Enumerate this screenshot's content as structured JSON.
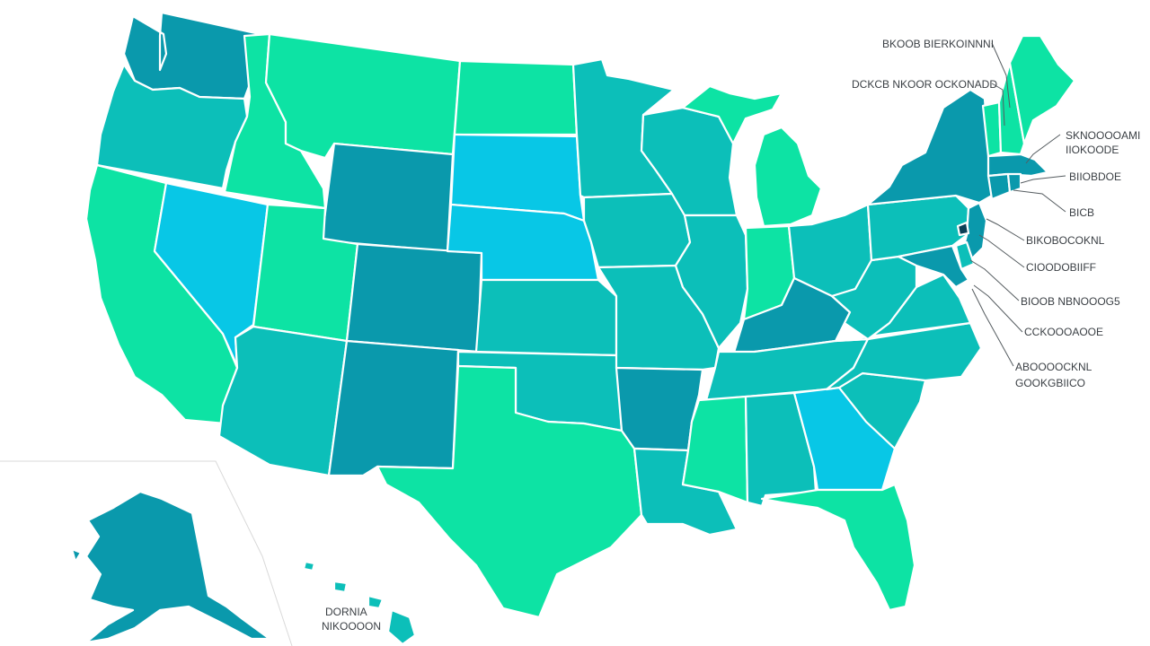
{
  "palette": {
    "mint": "#0de3a4",
    "teal": "#0cbfb9",
    "steel": "#0a99ac",
    "sky": "#08c7e6",
    "navy": "#0b3f55",
    "border": "#ffffff",
    "label_text": "#3a3f44"
  },
  "states": [
    {
      "key": "WA",
      "color": "steel"
    },
    {
      "key": "OR",
      "color": "teal"
    },
    {
      "key": "CA",
      "color": "mint"
    },
    {
      "key": "ID",
      "color": "mint"
    },
    {
      "key": "NV",
      "color": "sky"
    },
    {
      "key": "MT",
      "color": "mint"
    },
    {
      "key": "WY",
      "color": "steel"
    },
    {
      "key": "UT",
      "color": "mint"
    },
    {
      "key": "AZ",
      "color": "teal"
    },
    {
      "key": "CO",
      "color": "steel"
    },
    {
      "key": "NM",
      "color": "steel"
    },
    {
      "key": "ND",
      "color": "mint"
    },
    {
      "key": "SD",
      "color": "sky"
    },
    {
      "key": "NE",
      "color": "sky"
    },
    {
      "key": "KS",
      "color": "teal"
    },
    {
      "key": "OK",
      "color": "teal"
    },
    {
      "key": "TX",
      "color": "mint"
    },
    {
      "key": "MN",
      "color": "teal"
    },
    {
      "key": "IA",
      "color": "teal"
    },
    {
      "key": "MO",
      "color": "teal"
    },
    {
      "key": "AR",
      "color": "steel"
    },
    {
      "key": "LA",
      "color": "teal"
    },
    {
      "key": "WI",
      "color": "teal"
    },
    {
      "key": "IL",
      "color": "teal"
    },
    {
      "key": "MI",
      "color": "mint"
    },
    {
      "key": "IN",
      "color": "mint"
    },
    {
      "key": "OH",
      "color": "teal"
    },
    {
      "key": "KY",
      "color": "steel"
    },
    {
      "key": "TN",
      "color": "teal"
    },
    {
      "key": "MS",
      "color": "mint"
    },
    {
      "key": "AL",
      "color": "teal"
    },
    {
      "key": "GA",
      "color": "sky"
    },
    {
      "key": "FL",
      "color": "mint"
    },
    {
      "key": "SC",
      "color": "teal"
    },
    {
      "key": "NC",
      "color": "teal"
    },
    {
      "key": "VA",
      "color": "teal"
    },
    {
      "key": "WV",
      "color": "teal"
    },
    {
      "key": "PA",
      "color": "teal"
    },
    {
      "key": "NY",
      "color": "steel"
    },
    {
      "key": "VT",
      "color": "mint"
    },
    {
      "key": "NH",
      "color": "mint"
    },
    {
      "key": "ME",
      "color": "mint"
    },
    {
      "key": "MA",
      "color": "steel"
    },
    {
      "key": "CT",
      "color": "steel"
    },
    {
      "key": "RI",
      "color": "steel"
    },
    {
      "key": "NJ",
      "color": "steel"
    },
    {
      "key": "DE",
      "color": "teal"
    },
    {
      "key": "MD",
      "color": "steel"
    },
    {
      "key": "DC",
      "color": "navy"
    },
    {
      "key": "AK",
      "color": "steel"
    },
    {
      "key": "HI",
      "color": "teal"
    }
  ],
  "callouts": [
    {
      "key": "c1",
      "text": "BKOOB BIERKOINNNI"
    },
    {
      "key": "c2",
      "text": "DCKCB NKOOR OCKONADD"
    },
    {
      "key": "c3a",
      "text": "SKNOOOOAMI"
    },
    {
      "key": "c3b",
      "text": "IIOKOODE"
    },
    {
      "key": "c4",
      "text": "BIIOBDOE"
    },
    {
      "key": "c5",
      "text": "BICB"
    },
    {
      "key": "c6",
      "text": "BIKOBOCOKNL"
    },
    {
      "key": "c7",
      "text": "CIOODOBIIFF"
    },
    {
      "key": "c8",
      "text": "BIOOB NBNOOOG5"
    },
    {
      "key": "c9",
      "text": "CCKOOOAOOE"
    },
    {
      "key": "c10a",
      "text": "ABOOOOCKNL"
    },
    {
      "key": "c10b",
      "text": "GOOKGBIICO"
    }
  ],
  "alaska_label": {
    "line1": "DORNIA",
    "line2": "NIKOOOON"
  }
}
